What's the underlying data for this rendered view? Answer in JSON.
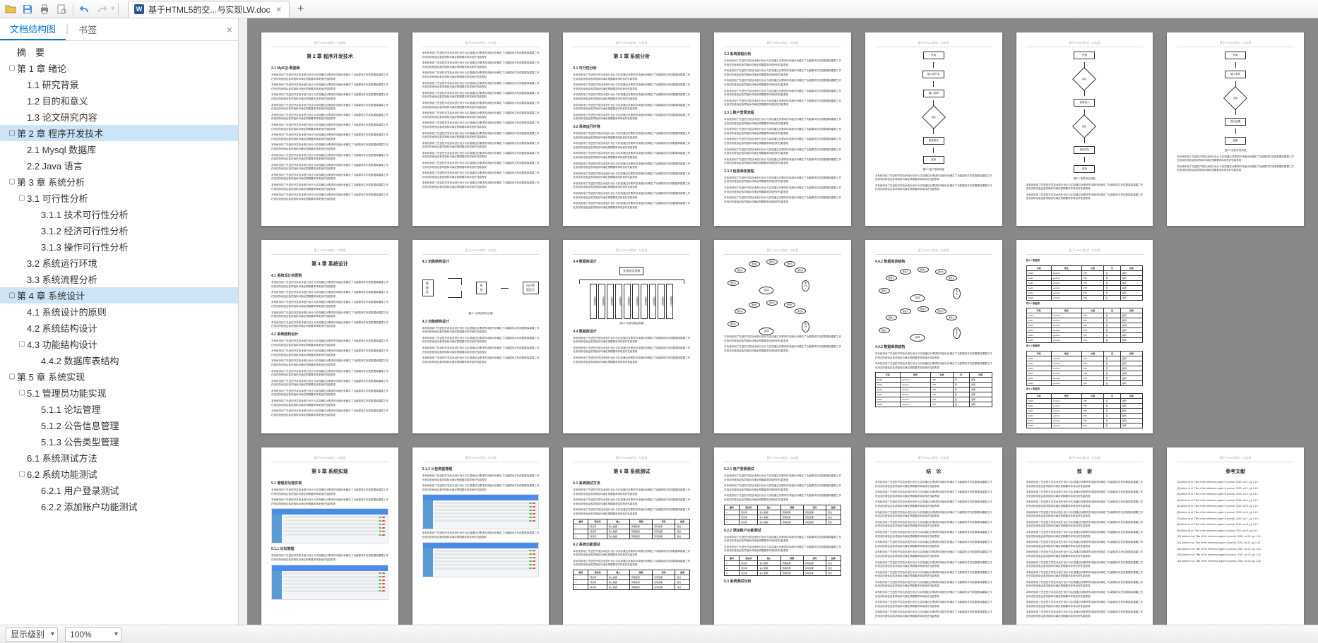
{
  "toolbar": {
    "open_icon": "📂",
    "save_icon": "💾",
    "print_icon": "🖨",
    "preview_icon": "📄",
    "undo_icon": "↶",
    "redo_icon": "↷"
  },
  "tab": {
    "title": "基于HTML5的交...与实现LW.doc",
    "icon_letter": "W"
  },
  "sidebar": {
    "tab_outline": "文档结构图",
    "tab_bookmark": "书签",
    "items": [
      {
        "level": 0,
        "arrow": "",
        "label": "摘　要",
        "sel": false
      },
      {
        "level": 0,
        "arrow": "▢",
        "label": "第 1 章  绪论",
        "sel": false
      },
      {
        "level": 1,
        "arrow": "",
        "label": "1.1  研究背景",
        "sel": false
      },
      {
        "level": 1,
        "arrow": "",
        "label": "1.2  目的和意义",
        "sel": false
      },
      {
        "level": 1,
        "arrow": "",
        "label": "1.3  论文研究内容",
        "sel": false
      },
      {
        "level": 0,
        "arrow": "▢",
        "label": "第 2 章  程序开发技术",
        "sel": true
      },
      {
        "level": 1,
        "arrow": "",
        "label": "2.1  Mysql 数据库",
        "sel": false
      },
      {
        "level": 1,
        "arrow": "",
        "label": "2.2  Java 语言",
        "sel": false
      },
      {
        "level": 0,
        "arrow": "▢",
        "label": "第 3 章  系统分析",
        "sel": false
      },
      {
        "level": 1,
        "arrow": "▢",
        "label": "3.1  可行性分析",
        "sel": false
      },
      {
        "level": 2,
        "arrow": "",
        "label": "3.1.1 技术可行性分析",
        "sel": false
      },
      {
        "level": 2,
        "arrow": "",
        "label": "3.1.2 经济可行性分析",
        "sel": false
      },
      {
        "level": 2,
        "arrow": "",
        "label": "3.1.3 操作可行性分析",
        "sel": false
      },
      {
        "level": 1,
        "arrow": "",
        "label": "3.2  系统运行环境",
        "sel": false
      },
      {
        "level": 1,
        "arrow": "",
        "label": "3.3  系统流程分析",
        "sel": false
      },
      {
        "level": 0,
        "arrow": "▢",
        "label": "第 4 章  系统设计",
        "sel": true
      },
      {
        "level": 1,
        "arrow": "",
        "label": "4.1  系统设计的原则",
        "sel": false
      },
      {
        "level": 1,
        "arrow": "",
        "label": "4.2  系统结构设计",
        "sel": false
      },
      {
        "level": 1,
        "arrow": "▢",
        "label": "4.3  功能结构设计",
        "sel": false
      },
      {
        "level": 2,
        "arrow": "",
        "label": "4.4.2  数据库表结构",
        "sel": false
      },
      {
        "level": 0,
        "arrow": "▢",
        "label": "第 5 章  系统实现",
        "sel": false
      },
      {
        "level": 1,
        "arrow": "▢",
        "label": "5.1  管理员功能实现",
        "sel": false
      },
      {
        "level": 2,
        "arrow": "",
        "label": "5.1.1  论坛管理",
        "sel": false
      },
      {
        "level": 2,
        "arrow": "",
        "label": "5.1.2  公告信息管理",
        "sel": false
      },
      {
        "level": 2,
        "arrow": "",
        "label": "5.1.3  公告类型管理",
        "sel": false
      },
      {
        "level": 1,
        "arrow": "",
        "label": "6.1  系统测试方法",
        "sel": false
      },
      {
        "level": 1,
        "arrow": "▢",
        "label": "6.2  系统功能测试",
        "sel": false
      },
      {
        "level": 2,
        "arrow": "",
        "label": "6.2.1  用户登录测试",
        "sel": false
      },
      {
        "level": 2,
        "arrow": "",
        "label": "6.2.2  添加账户功能测试",
        "sel": false
      }
    ]
  },
  "statusbar": {
    "level_label": "显示级别",
    "zoom_value": "100%"
  },
  "pages": {
    "row1": [
      {
        "title": "第 2 章  程序开发技术",
        "sub1": "2.1 MySQL数据库"
      },
      {
        "textonly": true
      },
      {
        "title": "第 3 章  系统分析",
        "sub1": "3.1 可行性分析",
        "sub2": "3.2 系统运行环境"
      },
      {
        "sub1": "3.3 系统流程分析",
        "sub2": "3.3.1 账户登录流程",
        "sub3": "3.3.2 信息添加流程"
      },
      {
        "flowchart": "login",
        "caption": "图3.1 账户登录流程"
      },
      {
        "flowchart": "add",
        "caption": "图3.2 信息添加流程"
      },
      {
        "flowchart": "query",
        "caption": "图3.3 信息查询流程"
      }
    ],
    "row2": [
      {
        "title": "第 4 章  系统设计",
        "sub1": "4.1 系统设计的原则",
        "sub2": "4.2 系统结构设计"
      },
      {
        "struct_diagram": true,
        "caption": "图4.1 总体结构设计图",
        "sub1": "4.3 功能结构设计"
      },
      {
        "tree_diagram": true,
        "sub1": "4.4 数据库设计",
        "caption": "图4.2 系统功能结构图"
      },
      {
        "fan_diagram": true
      },
      {
        "fan_diagram2": true,
        "sub1": "4.4.2 数据库表结构"
      },
      {
        "tables": true
      }
    ],
    "row3": [
      {
        "title": "第 5 章  系统实现",
        "sub1": "5.1 管理员功能实现",
        "sub2": "5.1.1 论坛管理",
        "screenshots": 2
      },
      {
        "sub1": "5.1.3 公告类型管理",
        "screenshots": 2
      },
      {
        "title": "第 6 章  系统测试",
        "sub1": "6.1 系统测试方法",
        "sub2": "6.2 系统功能测试",
        "test_table": true
      },
      {
        "sub1": "6.2.1 用户登录测试",
        "sub2": "6.2.2 添加账户功能测试",
        "test_table": true,
        "sub3": "6.3 系统测试分析"
      },
      {
        "title": "结　论",
        "textonly": true
      },
      {
        "title": "致　谢",
        "textonly": true
      },
      {
        "title": "参考文献",
        "refs": true
      }
    ]
  },
  "colors": {
    "accent": "#0078d4",
    "selection": "#cce4f7",
    "page_bg": "#888888",
    "btn_green": "#5cb85c",
    "btn_red": "#d9534f",
    "btn_blue": "#337ab7",
    "header_blue": "#4a8de8"
  }
}
